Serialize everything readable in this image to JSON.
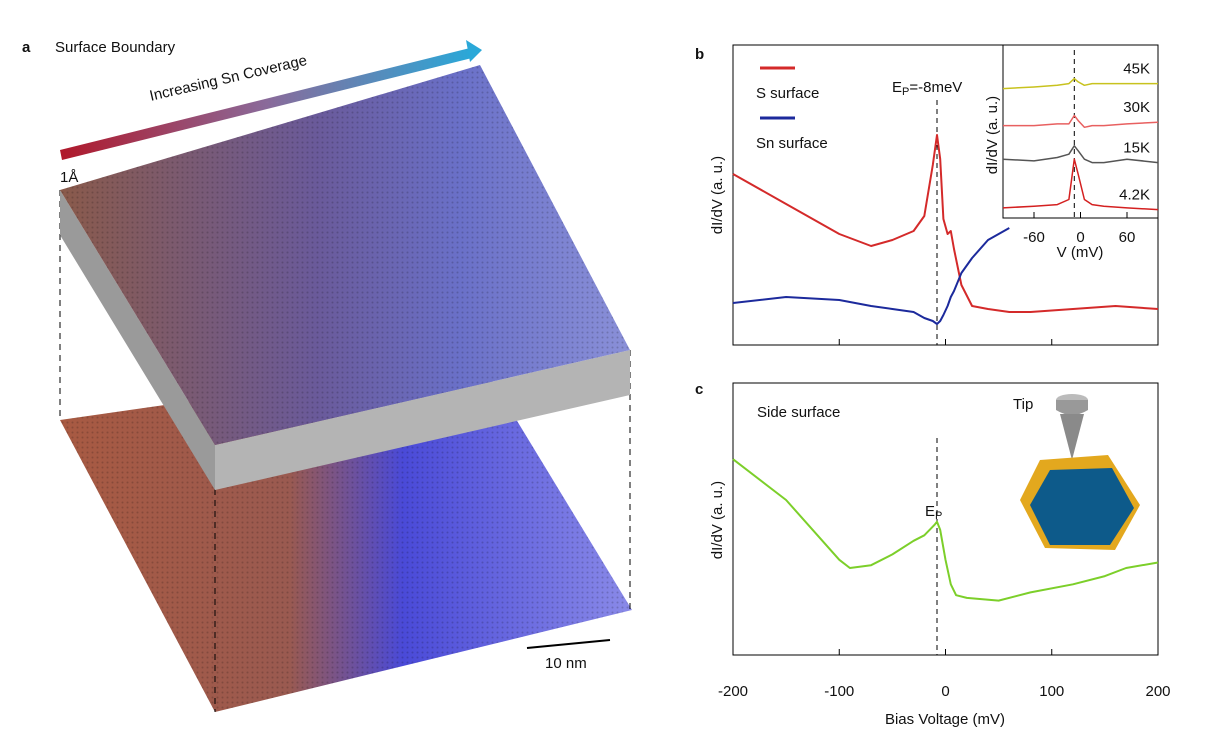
{
  "panel_a": {
    "label": "a",
    "title": "Surface Boundary",
    "arrow_label": "Increasing Sn Coverage",
    "height_label": "1Å",
    "scale_label": "10 nm"
  },
  "chart_data": [
    {
      "type": "line",
      "panel": "b",
      "ylabel": "dI/dV (a. u.)",
      "annotation": {
        "x": -8,
        "main": "E",
        "sub": "P",
        "rest": "=-8meV"
      },
      "xlim": [
        -200,
        200
      ],
      "ylim": [
        0,
        1
      ],
      "xticks": [
        -100,
        0,
        100
      ],
      "x": [
        -200,
        -150,
        -100,
        -70,
        -50,
        -30,
        -20,
        -12,
        -8,
        -5,
        -2,
        2,
        5,
        8,
        15,
        25,
        40,
        60,
        80,
        120,
        160,
        200
      ],
      "series": [
        {
          "name": "S surface",
          "color": "#d42a2a",
          "values": [
            0.57,
            0.47,
            0.37,
            0.33,
            0.35,
            0.38,
            0.43,
            0.6,
            0.7,
            0.62,
            0.42,
            0.37,
            0.38,
            0.32,
            0.2,
            0.13,
            0.12,
            0.11,
            0.11,
            0.12,
            0.13,
            0.12
          ]
        },
        {
          "name": "Sn surface",
          "color": "#1c2a9c",
          "values": [
            0.14,
            0.16,
            0.15,
            0.13,
            0.12,
            0.11,
            0.09,
            0.08,
            0.07,
            0.08,
            0.1,
            0.13,
            0.16,
            0.18,
            0.24,
            0.29,
            0.35,
            0.39,
            null,
            null,
            null,
            null
          ]
        }
      ]
    },
    {
      "type": "line",
      "panel": "b-inset",
      "ylabel": "dI/dV (a. u.)",
      "xlabel": "V (mV)",
      "annotation": {
        "x": -8
      },
      "xlim": [
        -100,
        100
      ],
      "ylim": [
        0,
        1
      ],
      "xticks": [
        -60,
        0,
        60
      ],
      "x": [
        -100,
        -60,
        -30,
        -15,
        -8,
        -3,
        5,
        15,
        30,
        60,
        100
      ],
      "series": [
        {
          "name": "45K",
          "color": "#c8c21e",
          "values": [
            0.77,
            0.78,
            0.79,
            0.8,
            0.83,
            0.81,
            0.79,
            0.8,
            0.8,
            0.8,
            0.8
          ]
        },
        {
          "name": "30K",
          "color": "#e86060",
          "values": [
            0.55,
            0.55,
            0.56,
            0.56,
            0.61,
            0.58,
            0.54,
            0.55,
            0.55,
            0.56,
            0.57
          ]
        },
        {
          "name": "15K",
          "color": "#555555",
          "values": [
            0.35,
            0.34,
            0.36,
            0.38,
            0.43,
            0.4,
            0.35,
            0.33,
            0.33,
            0.35,
            0.33
          ]
        },
        {
          "name": "4.2K",
          "color": "#d42020",
          "values": [
            0.06,
            0.07,
            0.08,
            0.11,
            0.35,
            0.26,
            0.11,
            0.08,
            0.07,
            0.06,
            0.05
          ]
        }
      ]
    },
    {
      "type": "line",
      "panel": "c",
      "ylabel": "dI/dV (a. u.)",
      "xlabel": "Bias Voltage (mV)",
      "text": "Side surface",
      "tip_label": "Tip",
      "annotation": {
        "x": -8,
        "main": "E",
        "sub": "P"
      },
      "xlim": [
        -200,
        200
      ],
      "ylim": [
        0,
        1
      ],
      "xticks": [
        -200,
        -100,
        0,
        100,
        200
      ],
      "x": [
        -200,
        -150,
        -100,
        -90,
        -70,
        -50,
        -30,
        -20,
        -10,
        -8,
        -5,
        0,
        5,
        10,
        20,
        50,
        80,
        120,
        150,
        170,
        200
      ],
      "series": [
        {
          "name": null,
          "color": "#7ccf2a",
          "values": [
            0.72,
            0.57,
            0.35,
            0.32,
            0.33,
            0.37,
            0.42,
            0.44,
            0.48,
            0.49,
            0.46,
            0.35,
            0.26,
            0.22,
            0.21,
            0.2,
            0.23,
            0.26,
            0.29,
            0.32,
            0.34
          ]
        }
      ]
    }
  ]
}
